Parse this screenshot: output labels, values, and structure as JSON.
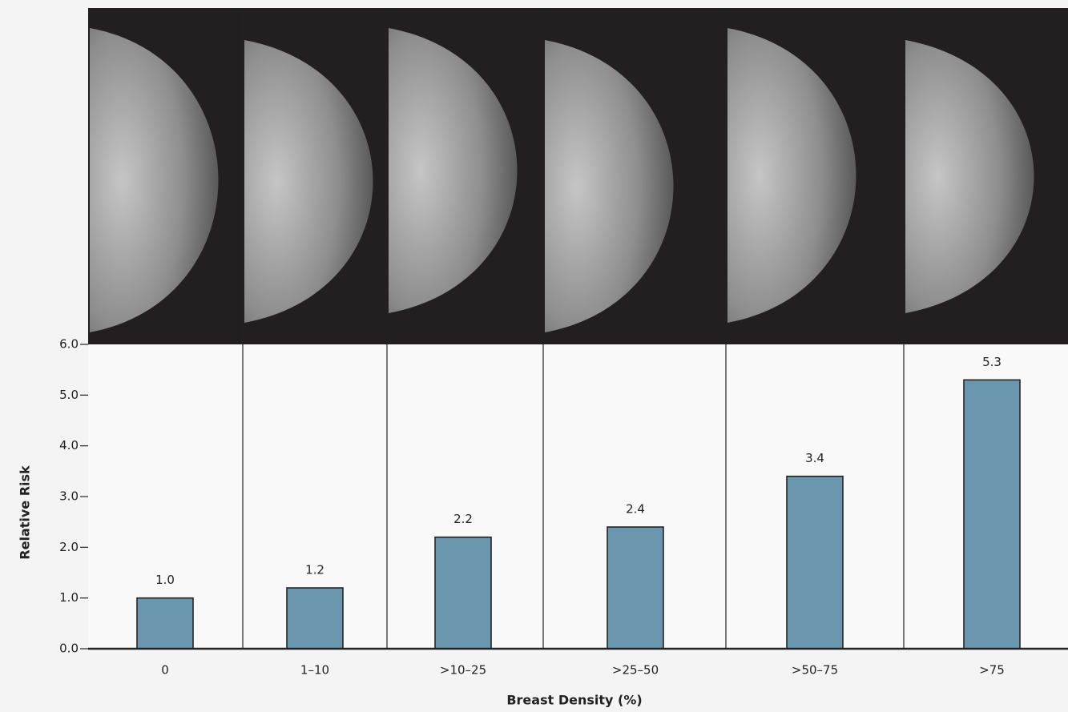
{
  "chart_data": {
    "type": "bar",
    "x_label": "Breast Density (%)",
    "y_label": "Relative Risk",
    "categories": [
      "0",
      "1–10",
      ">10–25",
      ">25–50",
      ">50–75",
      ">75"
    ],
    "values": [
      1.0,
      1.2,
      2.2,
      2.4,
      3.4,
      5.3
    ],
    "value_labels": [
      "1.0",
      "1.2",
      "2.2",
      "2.4",
      "3.4",
      "5.3"
    ],
    "color": "#6a96ae",
    "ylim": [
      0,
      6
    ],
    "yticks": [
      {
        "value": 0,
        "label": "0.0"
      },
      {
        "value": 1,
        "label": "1.0"
      },
      {
        "value": 2,
        "label": "2.0"
      },
      {
        "value": 3,
        "label": "3.0"
      },
      {
        "value": 4,
        "label": "4.0"
      },
      {
        "value": 5,
        "label": "5.0"
      },
      {
        "value": 6,
        "label": "6.0"
      }
    ]
  }
}
